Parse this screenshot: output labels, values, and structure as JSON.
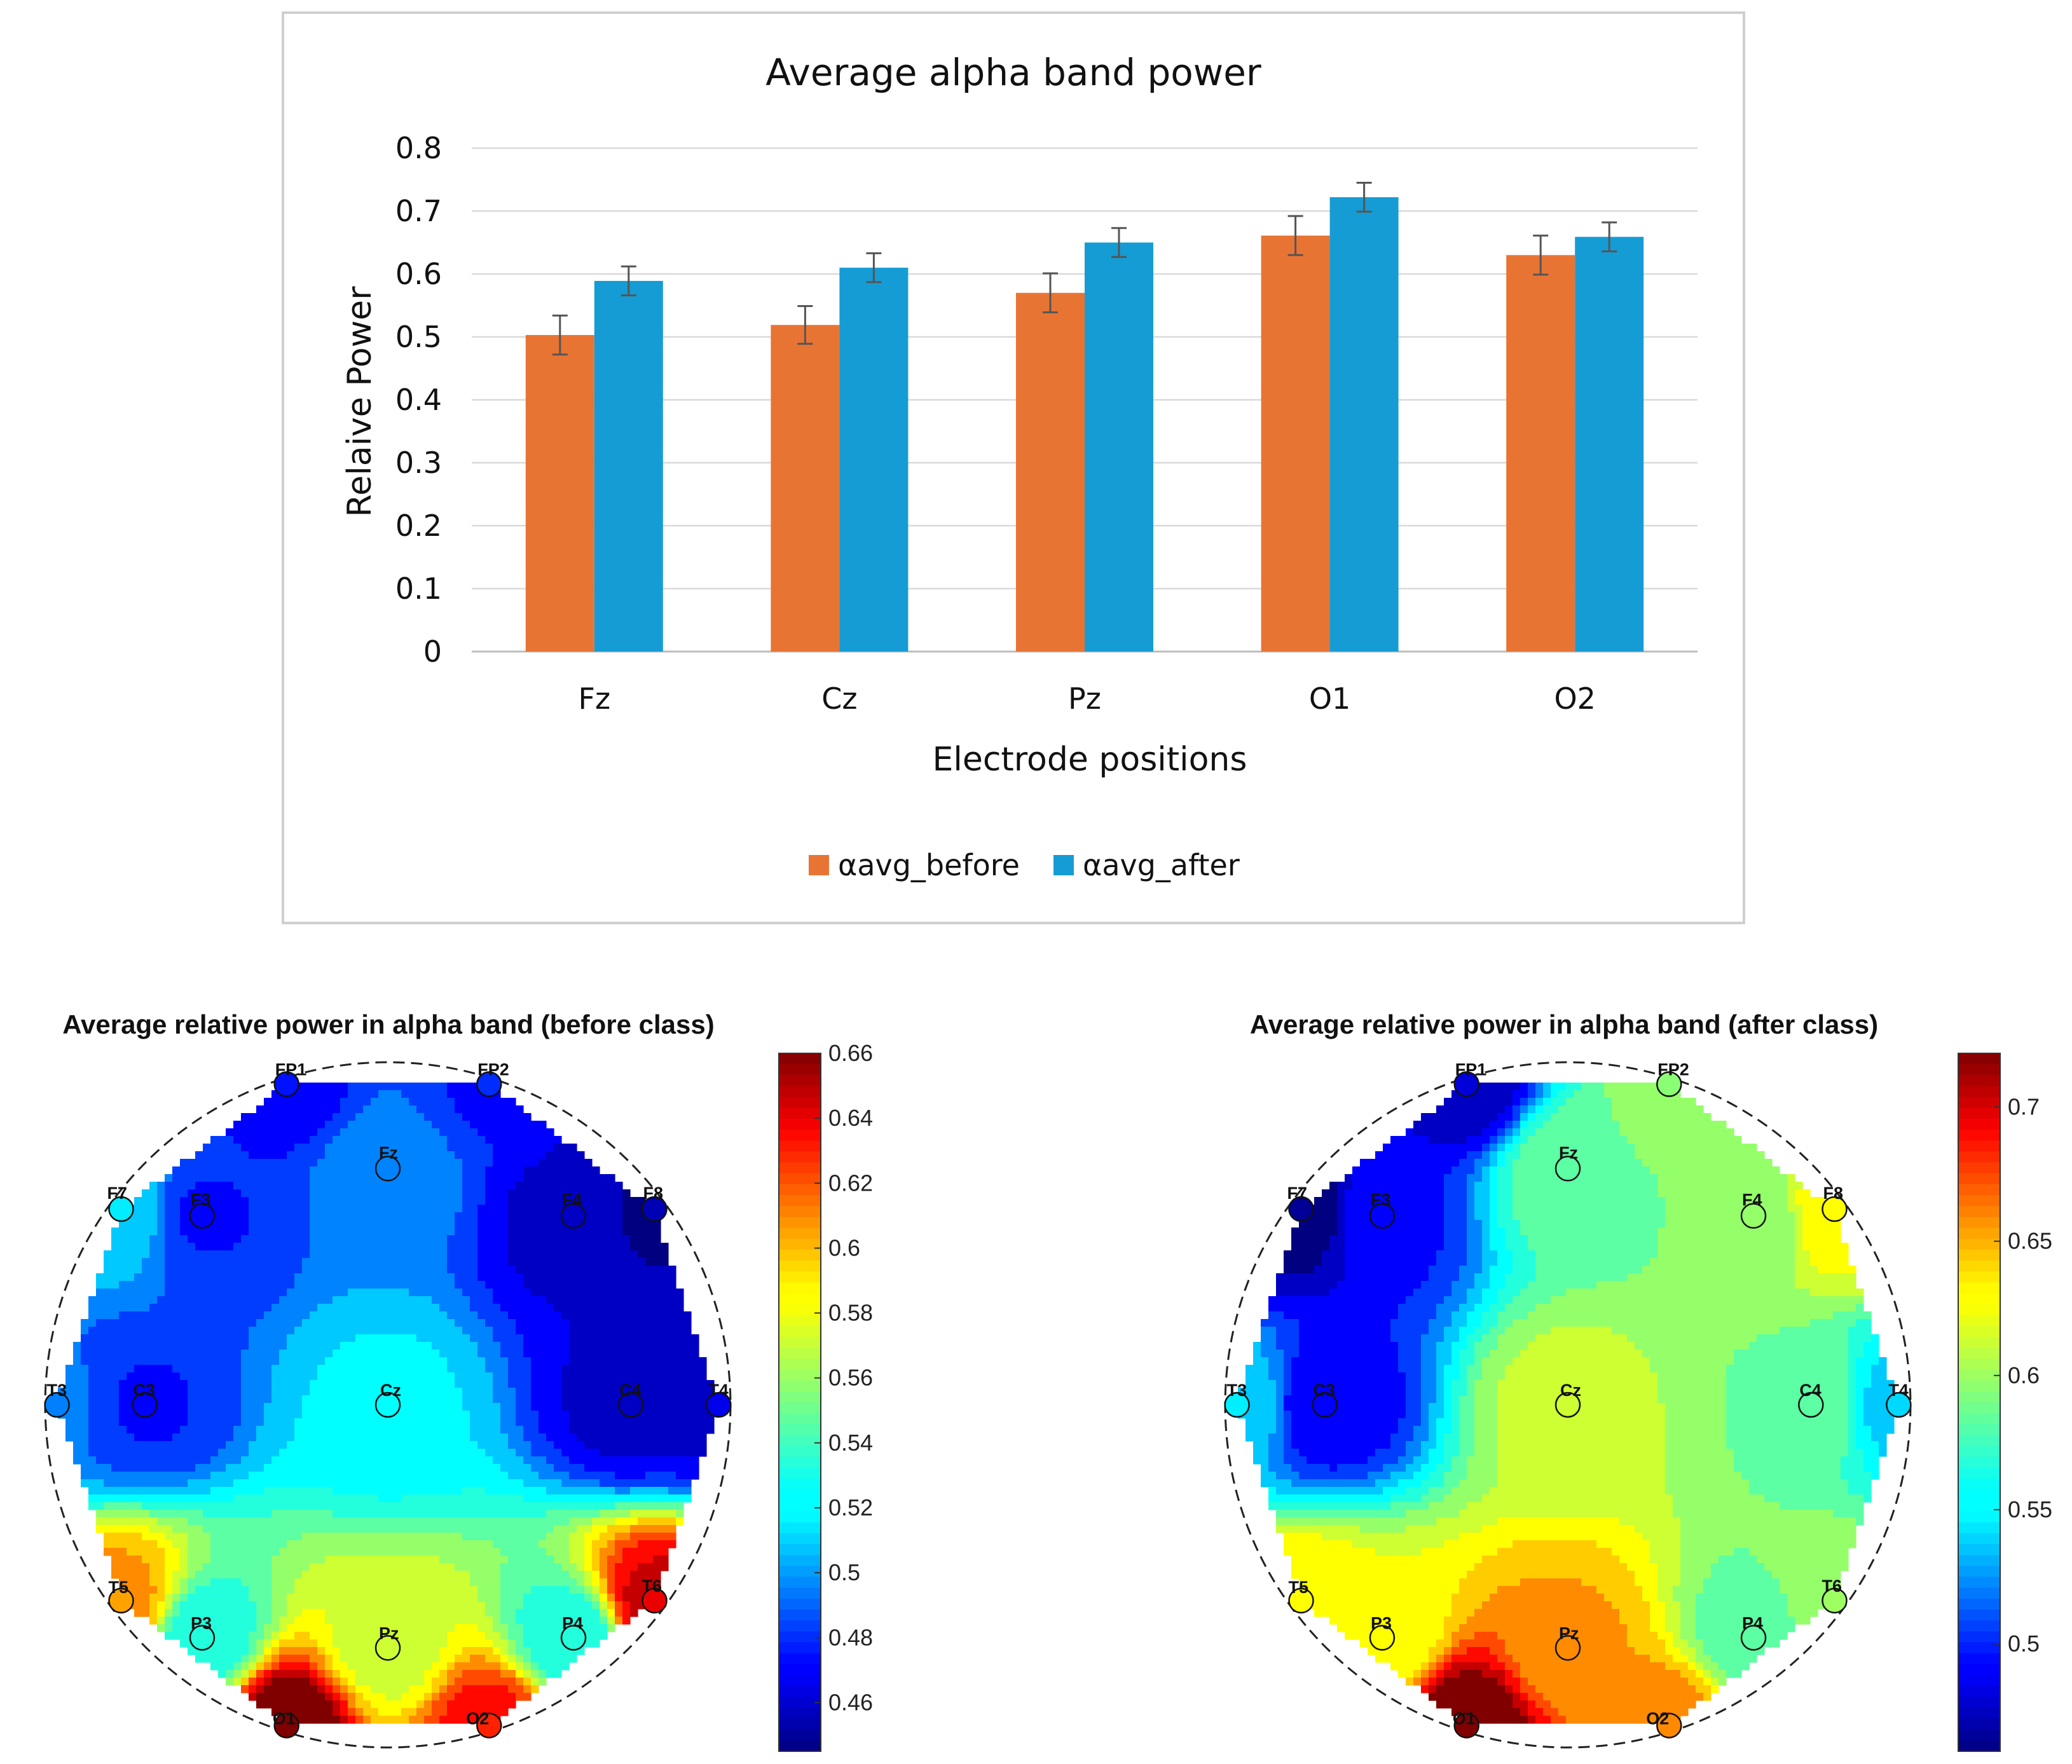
{
  "chart_data": [
    {
      "type": "bar",
      "title": "Average alpha band power",
      "xlabel": "Electrode positions",
      "ylabel": "Relaive Power",
      "ylim": [
        0,
        0.8
      ],
      "yticks": [
        "0",
        "0.1",
        "0.2",
        "0.3",
        "0.4",
        "0.5",
        "0.6",
        "0.7",
        "0.8"
      ],
      "ytick_values": [
        0,
        0.1,
        0.2,
        0.3,
        0.4,
        0.5,
        0.6,
        0.7,
        0.8
      ],
      "grid": true,
      "legend_position": "bottom",
      "categories": [
        "Fz",
        "Cz",
        "Pz",
        "O1",
        "O2"
      ],
      "series": [
        {
          "name": "αavg_before",
          "color": "#E87434",
          "values": [
            0.503,
            0.519,
            0.57,
            0.661,
            0.63
          ],
          "errors": [
            0.031,
            0.03,
            0.031,
            0.031,
            0.031
          ]
        },
        {
          "name": "αavg_after",
          "color": "#169CD4",
          "values": [
            0.589,
            0.61,
            0.65,
            0.722,
            0.659
          ],
          "errors": [
            0.023,
            0.023,
            0.023,
            0.023,
            0.023
          ]
        }
      ]
    },
    {
      "type": "heatmap",
      "subtype": "topographic-map",
      "title": "Average relative power in alpha band (before class)",
      "colorbar": {
        "min": 0.445,
        "max": 0.66,
        "ticks": [
          0.46,
          0.48,
          0.5,
          0.52,
          0.54,
          0.56,
          0.58,
          0.6,
          0.62,
          0.64,
          0.66
        ],
        "tick_labels": [
          "0.46",
          "0.48",
          "0.5",
          "0.52",
          "0.54",
          "0.56",
          "0.58",
          "0.6",
          "0.62",
          "0.64",
          "0.66"
        ]
      },
      "electrodes": [
        {
          "name": "FP1",
          "value": 0.475
        },
        {
          "name": "FP2",
          "value": 0.48
        },
        {
          "name": "F7",
          "value": 0.515
        },
        {
          "name": "F3",
          "value": 0.48
        },
        {
          "name": "Fz",
          "value": 0.503
        },
        {
          "name": "F4",
          "value": 0.465
        },
        {
          "name": "F8",
          "value": 0.455
        },
        {
          "name": "T3",
          "value": 0.495
        },
        {
          "name": "C3",
          "value": 0.48
        },
        {
          "name": "Cz",
          "value": 0.519
        },
        {
          "name": "C4",
          "value": 0.465
        },
        {
          "name": "T4",
          "value": 0.465
        },
        {
          "name": "T5",
          "value": 0.605
        },
        {
          "name": "P3",
          "value": 0.53
        },
        {
          "name": "Pz",
          "value": 0.57
        },
        {
          "name": "P4",
          "value": 0.53
        },
        {
          "name": "T6",
          "value": 0.64
        },
        {
          "name": "O1",
          "value": 0.661
        },
        {
          "name": "O2",
          "value": 0.63
        }
      ]
    },
    {
      "type": "heatmap",
      "subtype": "topographic-map",
      "title": "Average relative power in alpha band (after class)",
      "colorbar": {
        "min": 0.46,
        "max": 0.72,
        "ticks": [
          0.5,
          0.55,
          0.6,
          0.65,
          0.7
        ],
        "tick_labels": [
          "0.5",
          "0.55",
          "0.6",
          "0.65",
          "0.7"
        ]
      },
      "electrodes": [
        {
          "name": "FP1",
          "value": 0.48
        },
        {
          "name": "FP2",
          "value": 0.595
        },
        {
          "name": "F7",
          "value": 0.465
        },
        {
          "name": "F3",
          "value": 0.5
        },
        {
          "name": "Fz",
          "value": 0.589
        },
        {
          "name": "F4",
          "value": 0.59
        },
        {
          "name": "F8",
          "value": 0.63
        },
        {
          "name": "T3",
          "value": 0.545
        },
        {
          "name": "C3",
          "value": 0.49
        },
        {
          "name": "Cz",
          "value": 0.61
        },
        {
          "name": "C4",
          "value": 0.59
        },
        {
          "name": "T4",
          "value": 0.54
        },
        {
          "name": "T5",
          "value": 0.63
        },
        {
          "name": "P3",
          "value": 0.62
        },
        {
          "name": "Pz",
          "value": 0.65
        },
        {
          "name": "P4",
          "value": 0.58
        },
        {
          "name": "T6",
          "value": 0.6
        },
        {
          "name": "O1",
          "value": 0.722
        },
        {
          "name": "O2",
          "value": 0.659
        }
      ]
    }
  ]
}
